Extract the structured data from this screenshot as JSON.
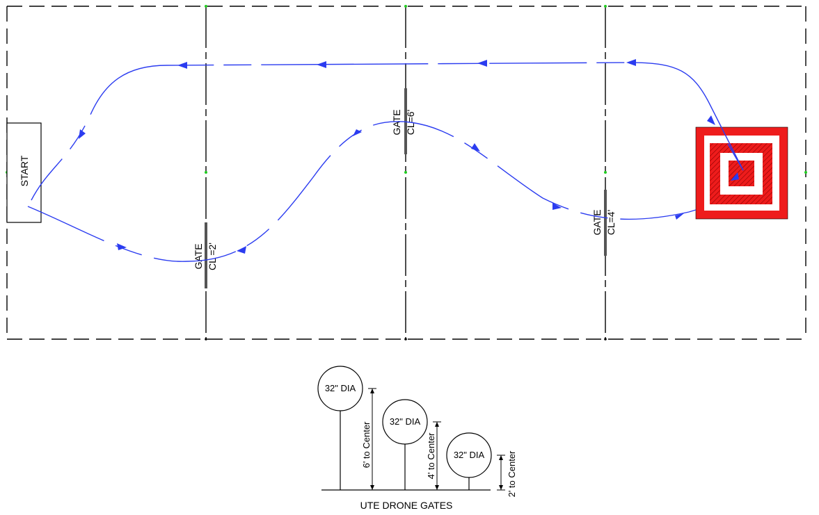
{
  "course": {
    "start_label": "START",
    "gate_word": "GATE",
    "gates": [
      {
        "id": "gate-1",
        "gate_label": "GATE",
        "cl_label": "CL =2'"
      },
      {
        "id": "gate-2",
        "gate_label": "GATE",
        "cl_label": "CL=6'"
      },
      {
        "id": "gate-3",
        "gate_label": "GATE",
        "cl_label": "CL=4'"
      }
    ],
    "colors": {
      "flight_path": "#2b3cf0",
      "target_red": "#ee1c1c",
      "grid_marker": "#22cc22",
      "lines": "#000000"
    }
  },
  "gates_detail": {
    "title": "UTE DRONE GATES",
    "items": [
      {
        "dia_label": "32\" DIA",
        "height_label": "6' to Center"
      },
      {
        "dia_label": "32\" DIA",
        "height_label": "4' to Center"
      },
      {
        "dia_label": "32\" DIA",
        "height_label": "2' to Center"
      }
    ]
  }
}
